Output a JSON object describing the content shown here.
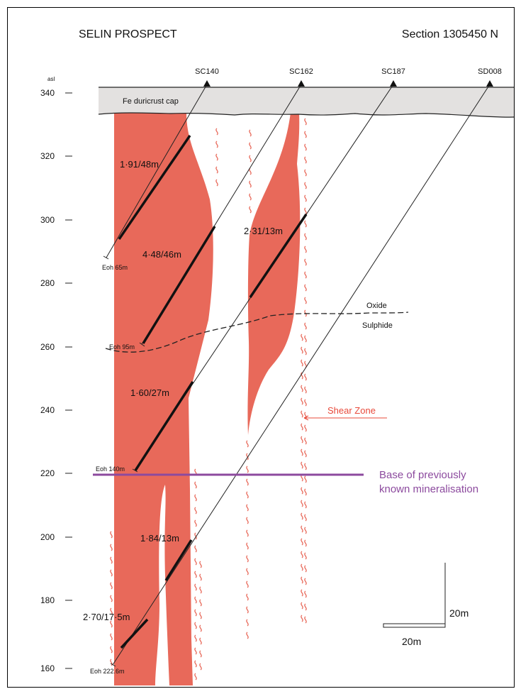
{
  "title_left": "SELIN PROSPECT",
  "title_right": "Section 1305450 N",
  "axis": {
    "unit": "asl",
    "ticks": [
      "340",
      "320",
      "300",
      "280",
      "260",
      "240",
      "220",
      "200",
      "180",
      "160"
    ]
  },
  "drillholes": [
    {
      "name": "SC140",
      "eoh": "Eoh 65m"
    },
    {
      "name": "SC162",
      "eoh": "Eoh 95m"
    },
    {
      "name": "SC187",
      "eoh": "Eoh 140m"
    },
    {
      "name": "SD008",
      "eoh": "Eoh 222.6m"
    }
  ],
  "labels": {
    "cap": "Fe duricrust cap",
    "oxide": "Oxide",
    "sulphide": "Sulphide",
    "shear_zone": "Shear Zone",
    "base_line1": "Base of previously",
    "base_line2": "known mineralisation"
  },
  "intercepts": [
    {
      "label": "1·91/48m"
    },
    {
      "label": "4·48/46m"
    },
    {
      "label": "2·31/13m"
    },
    {
      "label": "1·60/27m"
    },
    {
      "label": "1·84/13m"
    },
    {
      "label": "2·70/17·5m"
    }
  ],
  "scale_bar": {
    "vertical": "20m",
    "horizontal": "20m"
  },
  "colors": {
    "ore": "#e8695a",
    "cap": "#e3e1e0",
    "shear": "#e8695a",
    "base_line": "#8c4a9e",
    "shear_label": "#e8493a",
    "base_label": "#8c4a9e"
  }
}
